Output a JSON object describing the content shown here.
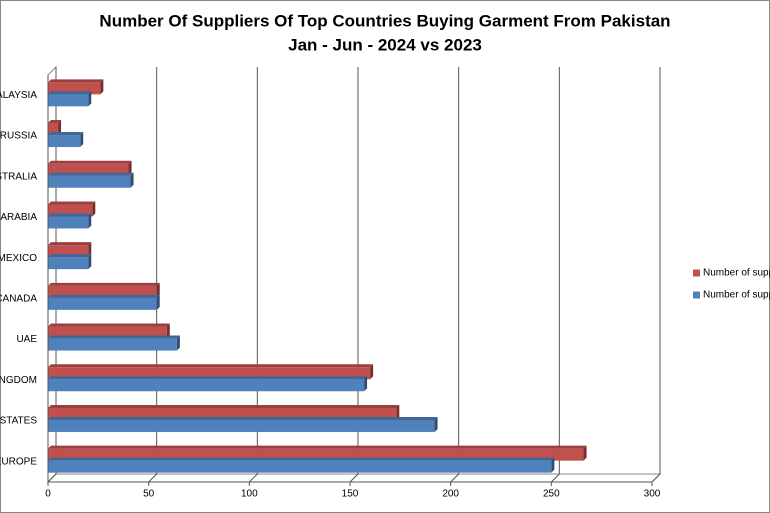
{
  "chart_data": {
    "type": "bar",
    "orientation": "horizontal",
    "title": "Number Of Suppliers Of Top Countries Buying Garment From Pakistan",
    "subtitle": "Jan - Jun - 2024 vs 2023",
    "categories": [
      "ALAYSIA",
      "RUSSIA",
      "STRALIA",
      "ARABIA",
      "MEXICO",
      "CANADA",
      "UAE",
      "NGDOM",
      "D STATES",
      "EUROPE"
    ],
    "series": [
      {
        "name": "Number of supp",
        "color": "#c0504d",
        "values": [
          26,
          5,
          40,
          22,
          20,
          54,
          59,
          160,
          173,
          266
        ]
      },
      {
        "name": "Number of supp",
        "color": "#4f81bd",
        "values": [
          20,
          16,
          41,
          20,
          20,
          54,
          64,
          157,
          192,
          250
        ]
      }
    ],
    "xlim": [
      0,
      300
    ],
    "xticks": [
      0,
      50,
      100,
      150,
      200,
      250,
      300
    ],
    "grid": true,
    "legend": "right"
  }
}
